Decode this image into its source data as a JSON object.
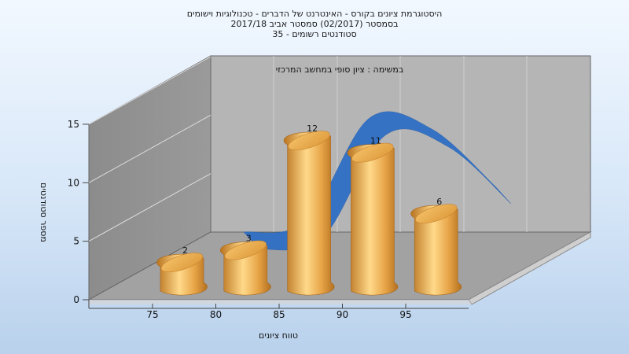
{
  "header": {
    "line1": "היסטוגרמת ציונים בקורס - האינטרנט של הדברים - טכנולוגיות וישומים",
    "line2": "בסמסטר  (02/2017)  סמסטר אביב 2017/18",
    "line3": "סטודנטים רשומים - 35"
  },
  "colors": {
    "bar": "#e0a446",
    "curve": "#2f6fc4",
    "wall": "#b4b4b4",
    "floor": "#9e9e9e"
  },
  "chart_data": {
    "type": "bar",
    "title": "במשימה : ציון סופי במחשב המרכזי",
    "xlabel": "טווח ציונים",
    "ylabel": "מספר סטודנטים",
    "x_ticks": [
      "75",
      "80",
      "85",
      "90",
      "95"
    ],
    "y_ticks": [
      "0",
      "5",
      "10",
      "15"
    ],
    "ylim": [
      0,
      15
    ],
    "categories": [
      "75",
      "80",
      "85",
      "90",
      "95"
    ],
    "values": [
      2,
      3,
      12,
      11,
      6
    ],
    "data_labels": [
      "2",
      "3",
      "12",
      "11",
      "6"
    ],
    "series": [
      {
        "values": [
          2,
          3,
          12,
          11,
          6
        ]
      }
    ],
    "trend_curve": true,
    "grid": true
  }
}
